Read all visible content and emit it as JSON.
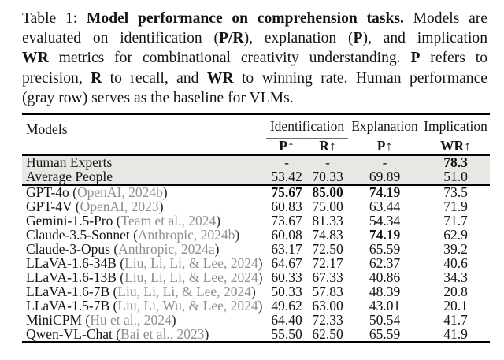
{
  "caption": {
    "lines": [
      [
        {
          "t": "Table 1: "
        },
        {
          "t": "Model performance on comprehension tasks.",
          "b": true
        },
        {
          "t": " Models are"
        }
      ],
      [
        {
          "t": "evaluated on identification ("
        },
        {
          "t": "P/R",
          "b": true
        },
        {
          "t": "), explanation ("
        },
        {
          "t": "P",
          "b": true
        },
        {
          "t": "), and implication"
        }
      ],
      [
        {
          "t": "WR",
          "b": true
        },
        {
          "t": " metrics for combinational creativity understanding. "
        },
        {
          "t": "P",
          "b": true
        },
        {
          "t": " refers to"
        }
      ],
      [
        {
          "t": "precision, "
        },
        {
          "t": "R",
          "b": true
        },
        {
          "t": " to recall, and "
        },
        {
          "t": "WR",
          "b": true
        },
        {
          "t": " to winning rate. Human performance"
        }
      ],
      [
        {
          "t": "(gray row) serves as the baseline for VLMs."
        }
      ]
    ]
  },
  "table": {
    "models_header": "Models",
    "col_groups": [
      {
        "label": "Identification",
        "cols": [
          {
            "label": "P",
            "arrow": "↑"
          },
          {
            "label": "R",
            "arrow": "↑"
          }
        ]
      },
      {
        "label": "Explanation",
        "cols": [
          {
            "label": "P",
            "arrow": "↑"
          }
        ]
      },
      {
        "label": "Implication",
        "cols": [
          {
            "label": "WR",
            "arrow": "↑"
          }
        ]
      }
    ],
    "baseline_rows": [
      {
        "model": "Human Experts",
        "cite": null,
        "values": [
          {
            "v": "-"
          },
          {
            "v": "-"
          },
          {
            "v": "-"
          },
          {
            "v": "78.3",
            "b": true
          }
        ]
      },
      {
        "model": "Average People",
        "cite": null,
        "values": [
          {
            "v": "53.42"
          },
          {
            "v": "70.33"
          },
          {
            "v": "69.89"
          },
          {
            "v": "51.0"
          }
        ]
      }
    ],
    "model_rows": [
      {
        "model": "GPT-4o",
        "cite": "OpenAI, 2024b",
        "values": [
          {
            "v": "75.67",
            "b": true
          },
          {
            "v": "85.00",
            "b": true
          },
          {
            "v": "74.19",
            "b": true
          },
          {
            "v": "73.5"
          }
        ]
      },
      {
        "model": "GPT-4V",
        "cite": "OpenAI, 2023",
        "values": [
          {
            "v": "60.83"
          },
          {
            "v": "75.00"
          },
          {
            "v": "63.44"
          },
          {
            "v": "71.9"
          }
        ]
      },
      {
        "model": "Gemini-1.5-Pro",
        "cite": "Team et al., 2024",
        "values": [
          {
            "v": "73.67"
          },
          {
            "v": "81.33"
          },
          {
            "v": "54.34"
          },
          {
            "v": "71.7"
          }
        ]
      },
      {
        "model": "Claude-3.5-Sonnet",
        "cite": "Anthropic, 2024b",
        "values": [
          {
            "v": "60.08"
          },
          {
            "v": "74.83"
          },
          {
            "v": "74.19",
            "b": true
          },
          {
            "v": "62.9"
          }
        ]
      },
      {
        "model": "Claude-3-Opus",
        "cite": "Anthropic, 2024a",
        "values": [
          {
            "v": "63.17"
          },
          {
            "v": "72.50"
          },
          {
            "v": "65.59"
          },
          {
            "v": "39.2"
          }
        ]
      },
      {
        "model": "LLaVA-1.6-34B",
        "cite": "Liu, Li, Li, & Lee, 2024",
        "values": [
          {
            "v": "64.67"
          },
          {
            "v": "72.17"
          },
          {
            "v": "62.37"
          },
          {
            "v": "40.6"
          }
        ]
      },
      {
        "model": "LLaVA-1.6-13B",
        "cite": "Liu, Li, Li, & Lee, 2024",
        "values": [
          {
            "v": "60.33"
          },
          {
            "v": "67.33"
          },
          {
            "v": "40.86"
          },
          {
            "v": "34.3"
          }
        ]
      },
      {
        "model": "LLaVA-1.6-7B",
        "cite": "Liu, Li, Li, & Lee, 2024",
        "values": [
          {
            "v": "50.33"
          },
          {
            "v": "57.83"
          },
          {
            "v": "48.39"
          },
          {
            "v": "20.8"
          }
        ]
      },
      {
        "model": "LLaVA-1.5-7B",
        "cite": "Liu, Li, Wu, & Lee, 2024",
        "values": [
          {
            "v": "49.62"
          },
          {
            "v": "63.00"
          },
          {
            "v": "43.01"
          },
          {
            "v": "20.1"
          }
        ]
      },
      {
        "model": "MiniCPM",
        "cite": "Hu et al., 2024",
        "values": [
          {
            "v": "64.40"
          },
          {
            "v": "72.33"
          },
          {
            "v": "50.54"
          },
          {
            "v": "41.7"
          }
        ]
      },
      {
        "model": "Qwen-VL-Chat",
        "cite": "Bai et al., 2023",
        "values": [
          {
            "v": "55.50"
          },
          {
            "v": "62.50"
          },
          {
            "v": "65.59"
          },
          {
            "v": "41.9"
          }
        ]
      }
    ],
    "colors": {
      "citation": "#8f8f8f",
      "row_highlight": "#e8e7e4",
      "rule": "#000000",
      "cmidrule": "#6e6e6e"
    }
  }
}
